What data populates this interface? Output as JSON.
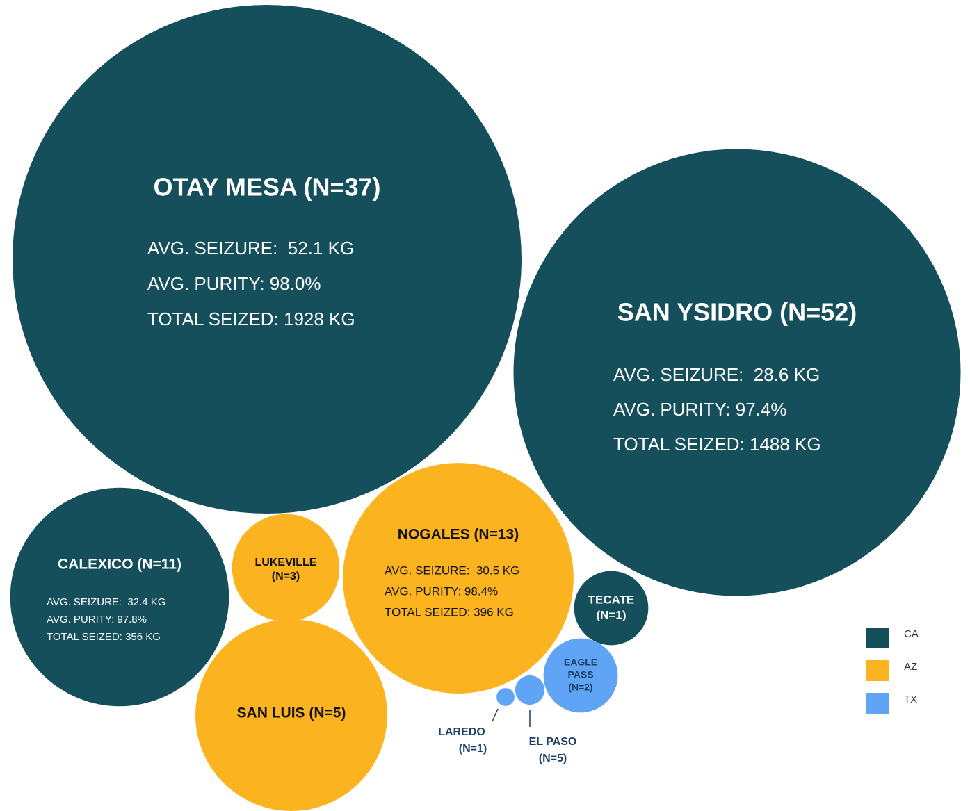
{
  "chart_data": {
    "type": "bubble",
    "groups": [
      {
        "name": "CA",
        "color": "#154f5c"
      },
      {
        "name": "AZ",
        "color": "#fbb41f"
      },
      {
        "name": "TX",
        "color": "#5fa4f5"
      }
    ],
    "series": [
      {
        "name": [
          "OTAY MESA (N=37)"
        ],
        "group": "CA",
        "size": 1928,
        "labels": [
          "AVG. SEIZURE:  52.1 KG",
          "AVG. PURITY: 98.0%",
          "TOTAL SEIZED: 1928 KG"
        ]
      },
      {
        "name": [
          "SAN YSIDRO (N=52)"
        ],
        "group": "CA",
        "size": 1488,
        "labels": [
          "AVG. SEIZURE:  28.6 KG",
          "AVG. PURITY: 97.4%",
          "TOTAL SEIZED: 1488 KG"
        ]
      },
      {
        "name": [
          "CALEXICO (N=11)"
        ],
        "group": "CA",
        "size": 356,
        "labels": [
          "AVG. SEIZURE:  32.4 KG",
          "AVG. PURITY: 97.8%",
          "TOTAL SEIZED: 356 KG"
        ]
      },
      {
        "name": [
          "LUKEVILLE",
          "(N=3)"
        ],
        "group": "AZ",
        "size": 86
      },
      {
        "name": [
          "SAN LUIS (N=5)"
        ],
        "group": "AZ",
        "size": 274
      },
      {
        "name": [
          "NOGALES (N=13)"
        ],
        "group": "AZ",
        "size": 396,
        "labels": [
          "AVG. SEIZURE:  30.5 KG",
          "AVG. PURITY: 98.4%",
          "TOTAL SEIZED: 396 KG"
        ]
      },
      {
        "name": [
          "TECATE",
          "(N=1)"
        ],
        "group": "CA",
        "size": 41
      },
      {
        "name": [
          "EAGLE",
          "PASS",
          "(N=2)"
        ],
        "group": "TX",
        "size": 41
      },
      {
        "name": [
          "EL PASO",
          "(N=5)"
        ],
        "group": "TX",
        "size": 6.4
      },
      {
        "name": [
          "LAREDO",
          "(N=1)"
        ],
        "group": "TX",
        "size": 2.4
      }
    ]
  }
}
